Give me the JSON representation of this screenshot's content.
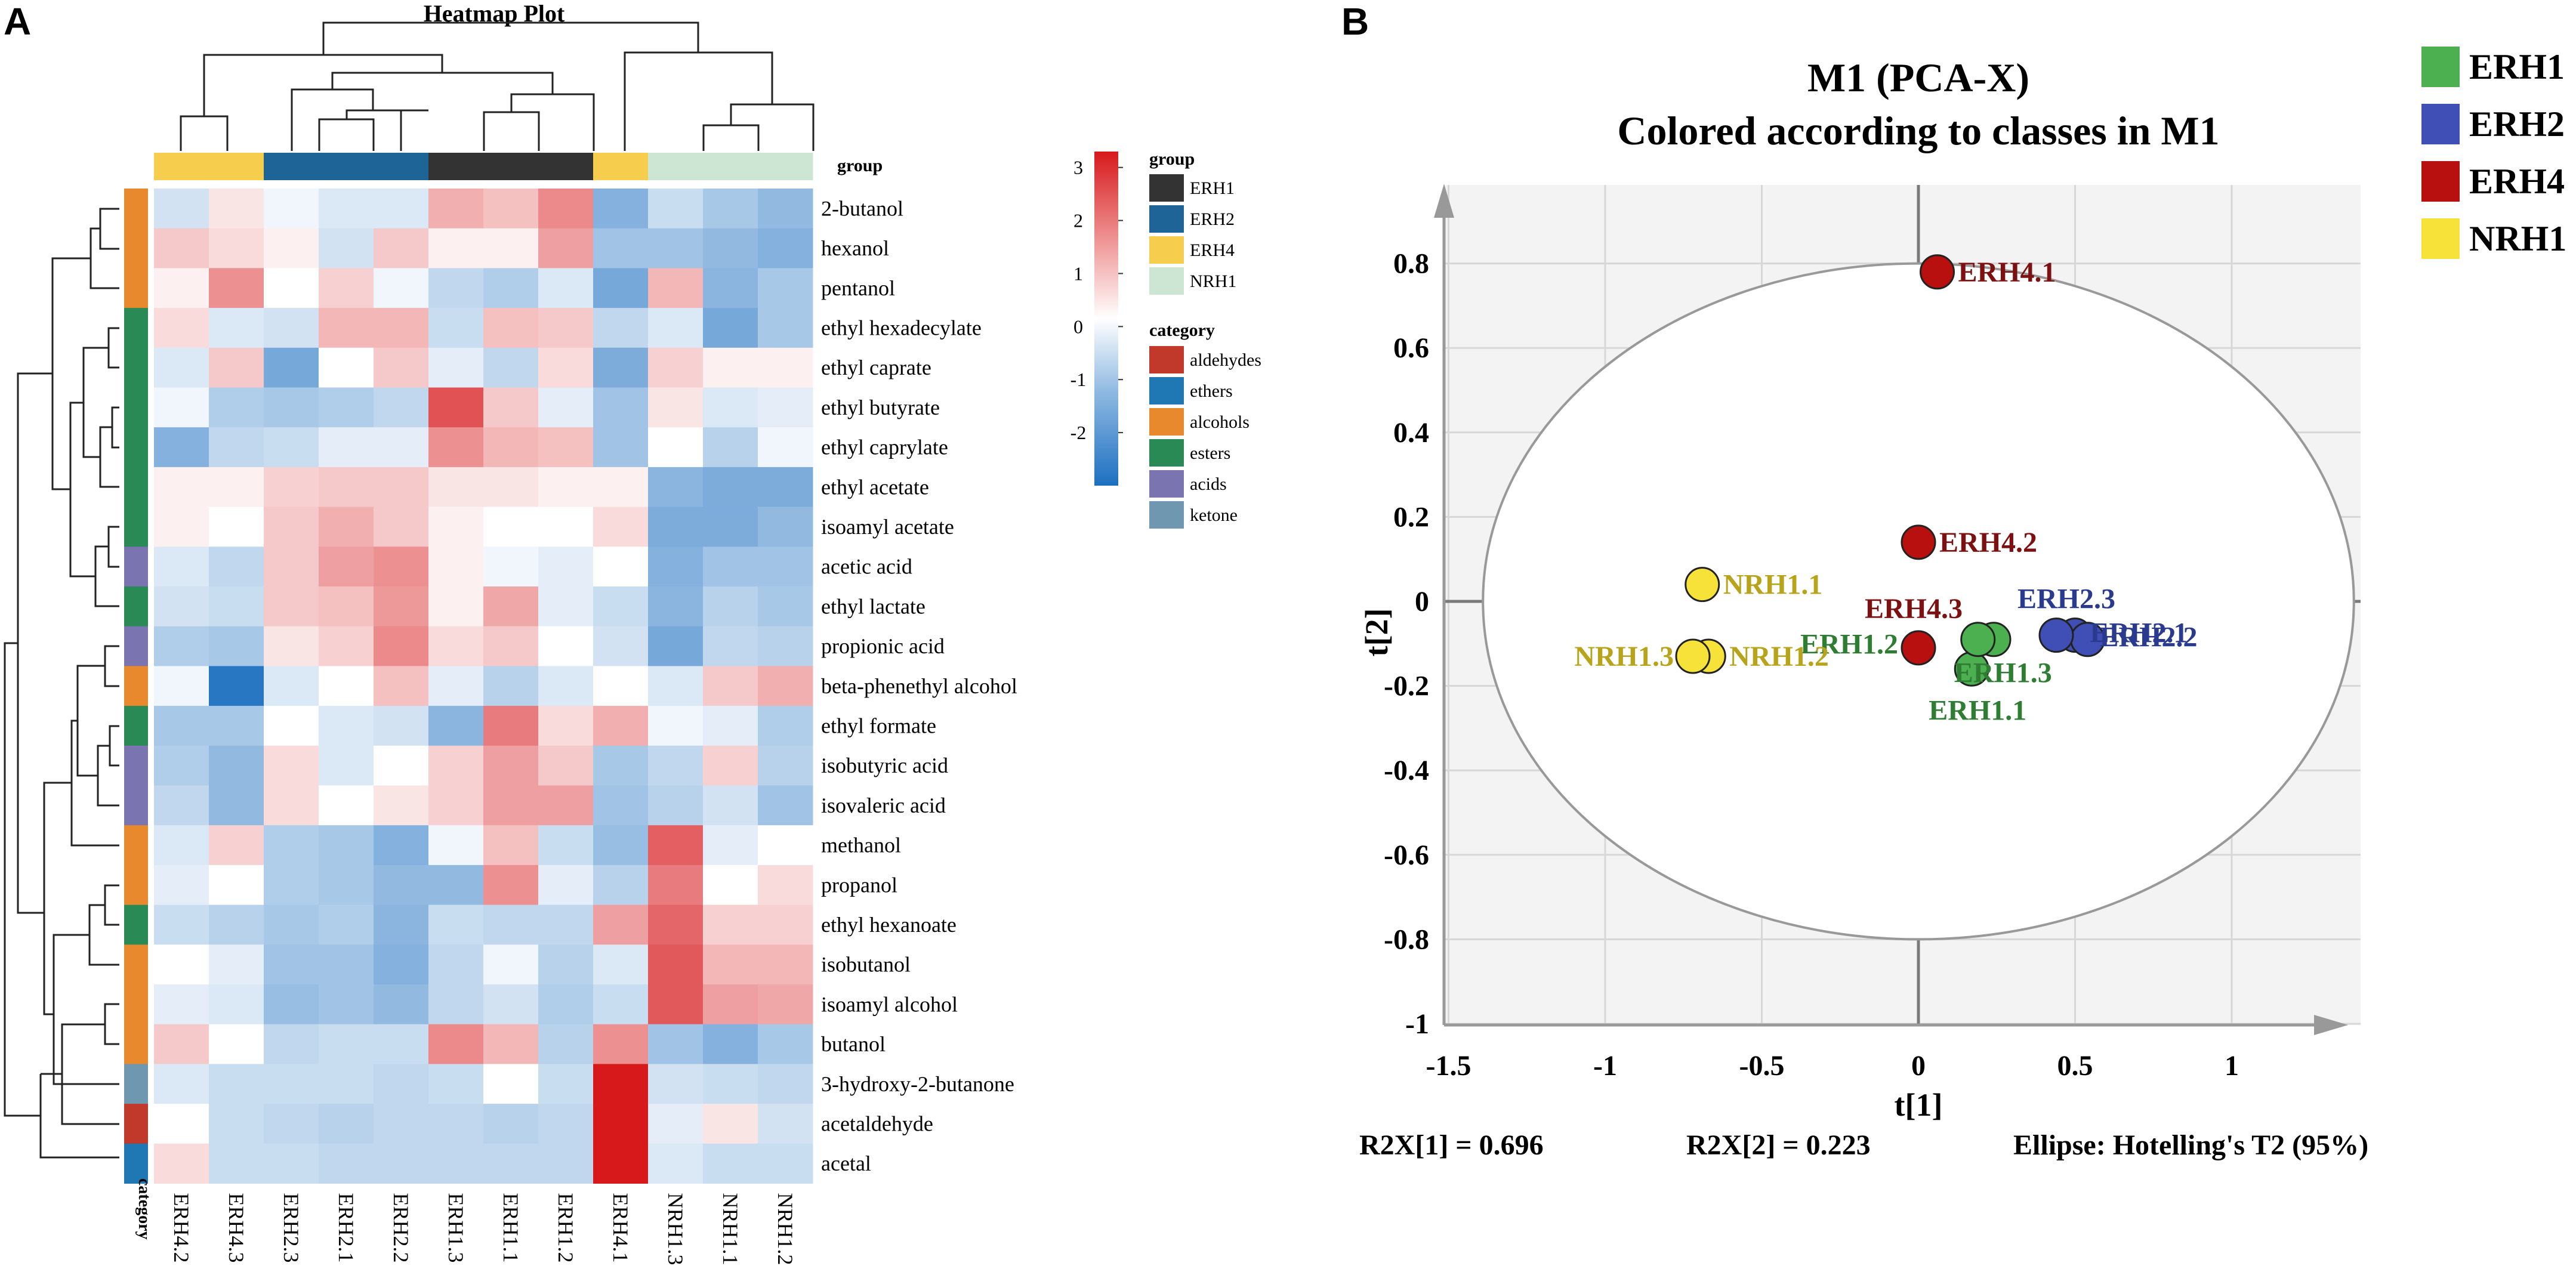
{
  "panels": {
    "a": "A",
    "b": "B"
  },
  "colors": {
    "group": {
      "ERH1": "#333333",
      "ERH2": "#1f6496",
      "ERH4": "#f7cd4e",
      "NRH1": "#cde6d3"
    },
    "category": {
      "aldehydes": "#c0392b",
      "ethers": "#1f78b4",
      "alcohols": "#e8892d",
      "esters": "#2a8a55",
      "acids": "#7a74b0",
      "ketone": "#6f98b0"
    },
    "pca": {
      "ERH1": "#4caf50",
      "ERH2": "#3f4fb5",
      "ERH4": "#b80f0f",
      "NRH1": "#f7e239"
    },
    "pca_label": {
      "ERH1": "#2e7d32",
      "ERH2": "#2a3a8f",
      "ERH4": "#7d1010",
      "NRH1": "#b8a41a"
    }
  },
  "heatmap": {
    "title": "Heatmap Plot",
    "group_header": "group",
    "category_axis_label": "category",
    "group_legend_title": "group",
    "category_legend_title": "category",
    "colorbar_ticks": [
      "3",
      "2",
      "1",
      "0",
      "-1",
      "-2"
    ],
    "columns": [
      "ERH4.2",
      "ERH4.3",
      "ERH2.3",
      "ERH2.1",
      "ERH2.2",
      "ERH1.3",
      "ERH1.1",
      "ERH1.2",
      "ERH4.1",
      "NRH1.3",
      "NRH1.1",
      "NRH1.2"
    ],
    "column_groups": [
      "ERH4",
      "ERH4",
      "ERH2",
      "ERH2",
      "ERH2",
      "ERH1",
      "ERH1",
      "ERH1",
      "ERH4",
      "NRH1",
      "NRH1",
      "NRH1"
    ],
    "group_legend": [
      "ERH1",
      "ERH2",
      "ERH4",
      "NRH1"
    ],
    "category_legend": [
      "aldehydes",
      "ethers",
      "alcohols",
      "esters",
      "acids",
      "ketone"
    ],
    "rows": [
      {
        "name": "2-butanol",
        "category": "alcohols",
        "values": [
          -0.4,
          0.2,
          -0.1,
          -0.3,
          -0.3,
          0.8,
          0.6,
          1.3,
          -1.4,
          -0.5,
          -0.9,
          -1.2
        ]
      },
      {
        "name": "hexanol",
        "category": "alcohols",
        "values": [
          0.5,
          0.3,
          0.1,
          -0.4,
          0.5,
          0.1,
          0.1,
          1.0,
          -1.0,
          -1.0,
          -1.2,
          -1.4
        ]
      },
      {
        "name": "pentanol",
        "category": "alcohols",
        "values": [
          0.1,
          1.2,
          0.0,
          0.4,
          -0.1,
          -0.6,
          -0.8,
          -0.3,
          -1.6,
          0.7,
          -1.3,
          -0.9
        ]
      },
      {
        "name": "ethyl hexadecylate",
        "category": "esters",
        "values": [
          0.3,
          -0.3,
          -0.4,
          0.7,
          0.7,
          -0.5,
          0.6,
          0.5,
          -0.6,
          -0.3,
          -1.6,
          -0.9
        ]
      },
      {
        "name": "ethyl caprate",
        "category": "esters",
        "values": [
          -0.3,
          0.5,
          -1.6,
          0.0,
          0.5,
          -0.2,
          -0.6,
          0.3,
          -1.5,
          0.4,
          0.1,
          0.1
        ]
      },
      {
        "name": "ethyl butyrate",
        "category": "esters",
        "values": [
          -0.1,
          -0.8,
          -0.9,
          -0.8,
          -0.6,
          2.1,
          0.5,
          -0.2,
          -1.0,
          0.2,
          -0.3,
          -0.2
        ]
      },
      {
        "name": "ethyl caprylate",
        "category": "esters",
        "values": [
          -1.4,
          -0.6,
          -0.5,
          -0.2,
          -0.2,
          1.2,
          0.7,
          0.6,
          -1.0,
          0.0,
          -0.7,
          -0.1
        ]
      },
      {
        "name": "ethyl acetate",
        "category": "esters",
        "values": [
          0.1,
          0.1,
          0.4,
          0.5,
          0.5,
          0.2,
          0.2,
          0.1,
          0.1,
          -1.3,
          -1.5,
          -1.5
        ]
      },
      {
        "name": "isoamyl acetate",
        "category": "esters",
        "values": [
          0.1,
          0.0,
          0.5,
          0.8,
          0.5,
          0.1,
          0.0,
          0.0,
          0.3,
          -1.5,
          -1.5,
          -1.2
        ]
      },
      {
        "name": "acetic acid",
        "category": "acids",
        "values": [
          -0.3,
          -0.6,
          0.5,
          1.0,
          1.2,
          0.1,
          -0.1,
          -0.2,
          0.0,
          -1.4,
          -1.0,
          -1.0
        ]
      },
      {
        "name": "ethyl lactate",
        "category": "esters",
        "values": [
          -0.4,
          -0.5,
          0.5,
          0.6,
          1.1,
          0.1,
          0.9,
          -0.2,
          -0.5,
          -1.3,
          -0.7,
          -0.9
        ]
      },
      {
        "name": "propionic acid",
        "category": "acids",
        "values": [
          -0.8,
          -0.9,
          0.2,
          0.4,
          1.3,
          0.3,
          0.5,
          0.0,
          -0.4,
          -1.6,
          -0.6,
          -0.7
        ]
      },
      {
        "name": "beta-phenethyl alcohol",
        "category": "alcohols",
        "values": [
          -0.1,
          -2.8,
          -0.3,
          0.0,
          0.6,
          -0.2,
          -0.7,
          -0.3,
          0.0,
          -0.3,
          0.5,
          0.8
        ]
      },
      {
        "name": "ethyl formate",
        "category": "esters",
        "values": [
          -0.9,
          -0.9,
          0.0,
          -0.3,
          -0.4,
          -1.3,
          1.5,
          0.3,
          0.8,
          -0.1,
          -0.2,
          -0.8
        ]
      },
      {
        "name": "isobutyric acid",
        "category": "acids",
        "values": [
          -0.8,
          -1.2,
          0.3,
          -0.3,
          0.0,
          0.4,
          1.0,
          0.5,
          -0.9,
          -0.6,
          0.4,
          -0.7
        ]
      },
      {
        "name": "isovaleric acid",
        "category": "acids",
        "values": [
          -0.6,
          -1.2,
          0.3,
          0.0,
          0.2,
          0.4,
          1.0,
          1.0,
          -1.0,
          -0.7,
          -0.4,
          -1.0
        ]
      },
      {
        "name": "methanol",
        "category": "alcohols",
        "values": [
          -0.3,
          0.4,
          -0.8,
          -0.9,
          -1.4,
          -0.1,
          0.6,
          -0.5,
          -1.1,
          1.9,
          -0.2,
          0.0
        ]
      },
      {
        "name": "propanol",
        "category": "alcohols",
        "values": [
          -0.2,
          0.0,
          -0.8,
          -0.9,
          -1.2,
          -1.2,
          1.2,
          -0.2,
          -0.7,
          1.5,
          0.0,
          0.3
        ]
      },
      {
        "name": "ethyl hexanoate",
        "category": "esters",
        "values": [
          -0.5,
          -0.7,
          -0.9,
          -0.8,
          -1.3,
          -0.5,
          -0.6,
          -0.6,
          1.0,
          1.8,
          0.4,
          0.4
        ]
      },
      {
        "name": "isobutanol",
        "category": "alcohols",
        "values": [
          0.0,
          -0.2,
          -1.0,
          -1.0,
          -1.4,
          -0.6,
          -0.1,
          -0.7,
          -0.3,
          2.0,
          0.7,
          0.7
        ]
      },
      {
        "name": "isoamyl alcohol",
        "category": "alcohols",
        "values": [
          -0.2,
          -0.3,
          -1.1,
          -1.0,
          -1.2,
          -0.6,
          -0.4,
          -0.8,
          -0.5,
          2.0,
          1.0,
          0.9
        ]
      },
      {
        "name": "butanol",
        "category": "alcohols",
        "values": [
          0.5,
          0.0,
          -0.6,
          -0.5,
          -0.5,
          1.3,
          0.7,
          -0.7,
          1.2,
          -1.0,
          -1.4,
          -0.9
        ]
      },
      {
        "name": "3-hydroxy-2-butanone",
        "category": "ketone",
        "values": [
          -0.3,
          -0.5,
          -0.5,
          -0.5,
          -0.6,
          -0.5,
          0.0,
          -0.5,
          3.2,
          -0.4,
          -0.5,
          -0.6
        ]
      },
      {
        "name": "acetaldehyde",
        "category": "aldehydes",
        "values": [
          0.0,
          -0.5,
          -0.6,
          -0.7,
          -0.6,
          -0.6,
          -0.7,
          -0.6,
          3.2,
          -0.2,
          0.2,
          -0.4
        ]
      },
      {
        "name": "acetal",
        "category": "ethers",
        "values": [
          0.3,
          -0.5,
          -0.5,
          -0.6,
          -0.6,
          -0.6,
          -0.6,
          -0.6,
          3.2,
          -0.3,
          -0.5,
          -0.5
        ]
      }
    ]
  },
  "pca": {
    "title_line1": "M1 (PCA-X)",
    "title_line2": "Colored according to classes in M1",
    "footer": {
      "r2x1": "R2X[1] = 0.696",
      "r2x2": "R2X[2] = 0.223",
      "ellipse": "Ellipse: Hotelling's T2 (95%)"
    }
  },
  "chart_data": [
    {
      "type": "heatmap",
      "title": "Heatmap Plot",
      "x": [
        "ERH4.2",
        "ERH4.3",
        "ERH2.3",
        "ERH2.1",
        "ERH2.2",
        "ERH1.3",
        "ERH1.1",
        "ERH1.2",
        "ERH4.1",
        "NRH1.3",
        "NRH1.1",
        "NRH1.2"
      ],
      "y": [
        "2-butanol",
        "hexanol",
        "pentanol",
        "ethyl hexadecylate",
        "ethyl caprate",
        "ethyl butyrate",
        "ethyl caprylate",
        "ethyl acetate",
        "isoamyl acetate",
        "acetic acid",
        "ethyl lactate",
        "propionic acid",
        "beta-phenethyl alcohol",
        "ethyl formate",
        "isobutyric acid",
        "isovaleric acid",
        "methanol",
        "propanol",
        "ethyl hexanoate",
        "isobutanol",
        "isoamyl alcohol",
        "butanol",
        "3-hydroxy-2-butanone",
        "acetaldehyde",
        "acetal"
      ],
      "color_range": [
        -3,
        3.3
      ],
      "note": "cell values are listed in heatmap.rows"
    },
    {
      "type": "scatter",
      "title": "M1 (PCA-X)",
      "subtitle": "Colored according to classes in M1",
      "xlabel": "t[1]",
      "ylabel": "t[2]",
      "xlim": [
        -1.5,
        1.45
      ],
      "ylim": [
        -1,
        0.98
      ],
      "xticks": [
        "-1.5",
        "-1",
        "-0.5",
        "0",
        "0.5",
        "1"
      ],
      "yticks": [
        "0.8",
        "0.6",
        "0.4",
        "0.2",
        "0",
        "-0.2",
        "-0.4",
        "-0.6",
        "-0.8",
        "-1"
      ],
      "legend": [
        "ERH1",
        "ERH2",
        "ERH4",
        "NRH1"
      ],
      "legend_position": "top-right",
      "ellipse": {
        "label": "Hotelling's T2 (95%)",
        "rx": 1.39,
        "ry": 0.8
      },
      "series": [
        {
          "name": "ERH1",
          "points": [
            {
              "label": "ERH1.1",
              "x": 0.17,
              "y": -0.16
            },
            {
              "label": "ERH1.2",
              "x": 0.24,
              "y": -0.09
            },
            {
              "label": "ERH1.3",
              "x": 0.19,
              "y": -0.09
            }
          ]
        },
        {
          "name": "ERH2",
          "points": [
            {
              "label": "ERH2.1",
              "x": 0.5,
              "y": -0.08
            },
            {
              "label": "ERH2.2",
              "x": 0.54,
              "y": -0.09
            },
            {
              "label": "ERH2.3",
              "x": 0.44,
              "y": -0.08
            }
          ]
        },
        {
          "name": "ERH4",
          "points": [
            {
              "label": "ERH4.1",
              "x": 0.06,
              "y": 0.78
            },
            {
              "label": "ERH4.2",
              "x": 0.0,
              "y": 0.14
            },
            {
              "label": "ERH4.3",
              "x": 0.0,
              "y": -0.11
            }
          ]
        },
        {
          "name": "NRH1",
          "points": [
            {
              "label": "NRH1.1",
              "x": -0.69,
              "y": 0.04
            },
            {
              "label": "NRH1.2",
              "x": -0.67,
              "y": -0.13
            },
            {
              "label": "NRH1.3",
              "x": -0.72,
              "y": -0.13
            }
          ]
        }
      ]
    }
  ]
}
